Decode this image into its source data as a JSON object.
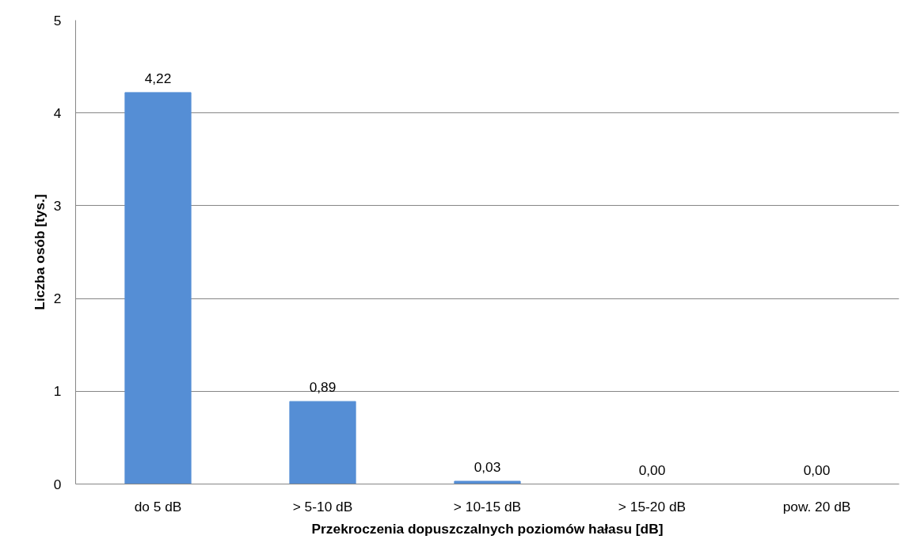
{
  "chart_data": {
    "type": "bar",
    "xlabel": "Przekroczenia dopuszczalnych poziomów hałasu [dB]",
    "ylabel": "Liczba osób [tys.]",
    "categories": [
      "do 5 dB",
      "> 5-10 dB",
      "> 10-15 dB",
      "> 15-20 dB",
      "pow. 20 dB"
    ],
    "values": [
      4.22,
      0.89,
      0.03,
      0.0,
      0.0
    ],
    "value_labels": [
      "4,22",
      "0,89",
      "0,03",
      "0,00",
      "0,00"
    ],
    "color": "#558ed5",
    "ylim": [
      0,
      5
    ],
    "yticks": [
      0,
      1,
      2,
      3,
      4,
      5
    ],
    "grid": "y"
  }
}
